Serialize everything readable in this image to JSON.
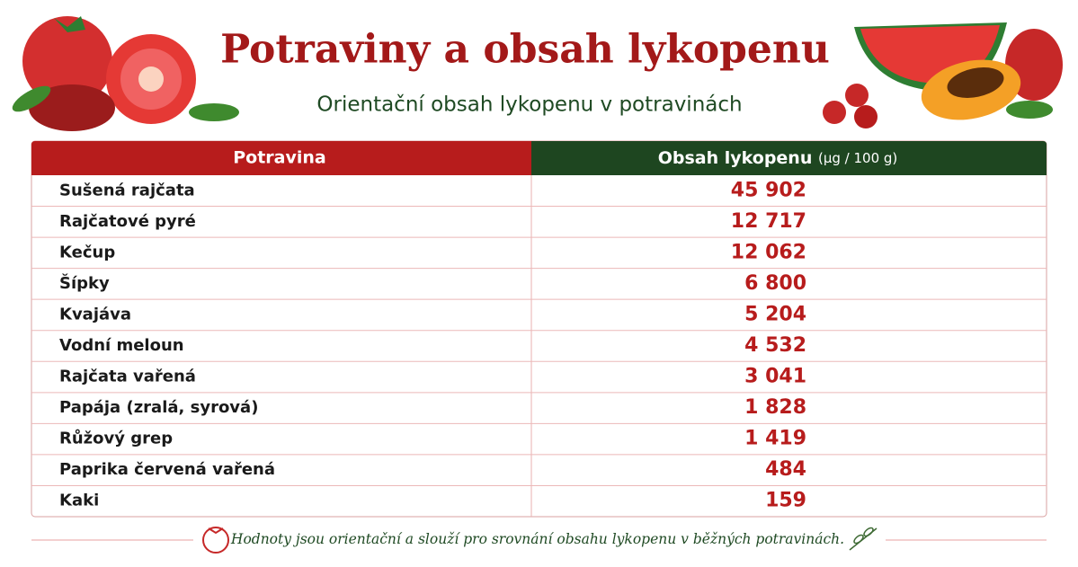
{
  "header": {
    "title": "Potraviny a obsah lykopenu",
    "subtitle": "Orientační obsah lykopenu v potravinách"
  },
  "table": {
    "columns": [
      "Potravina",
      "Obsah lykopenu",
      "(µg / 100 g)"
    ],
    "rows": [
      [
        "Sušená rajčata",
        "45 902"
      ],
      [
        "Rajčatové pyré",
        "12 717"
      ],
      [
        "Kečup",
        "12 062"
      ],
      [
        "Šípky",
        "6 800"
      ],
      [
        "Kvajáva",
        "5 204"
      ],
      [
        "Vodní meloun",
        "4 532"
      ],
      [
        "Rajčata vařená",
        "3 041"
      ],
      [
        "Papája (zralá, syrová)",
        "1 828"
      ],
      [
        "Růžový grep",
        "1 419"
      ],
      [
        "Paprika červená vařená",
        "484"
      ],
      [
        "Kaki",
        "159"
      ]
    ]
  },
  "footer": {
    "note": "Hodnoty jsou orientační a slouží pro srovnání obsahu lykopenu v běžných potravinách."
  }
}
